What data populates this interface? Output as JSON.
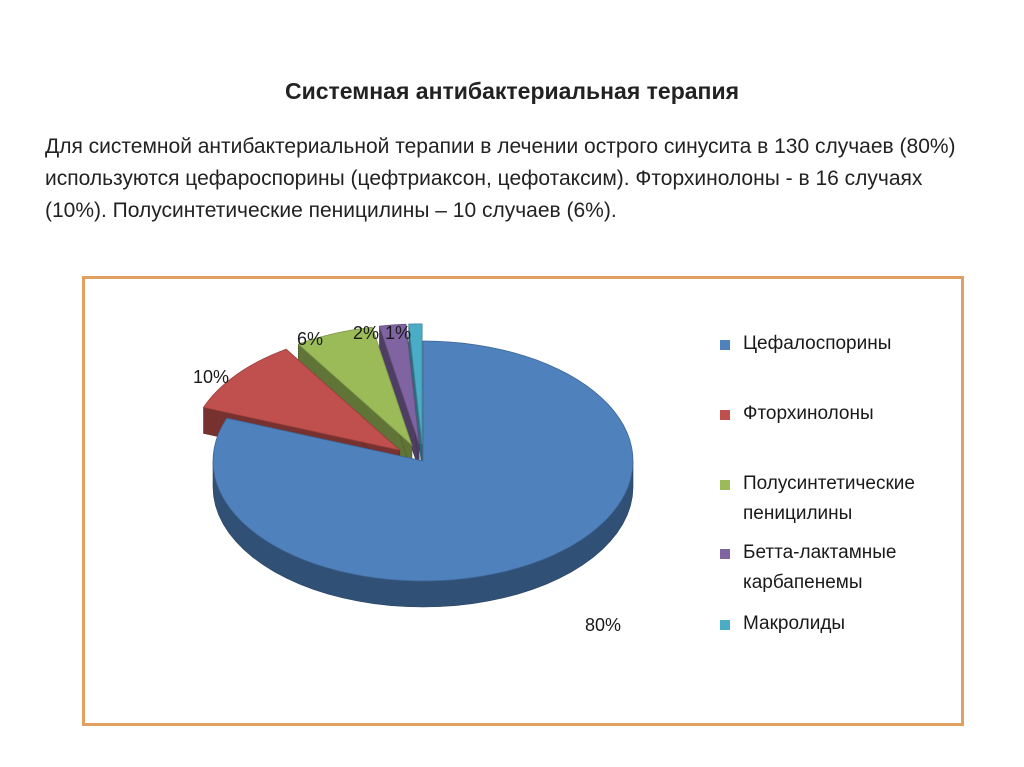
{
  "slide": {
    "title": "Системная антибактериальная терапия",
    "text": "Для системной антибактериальной терапии в лечении острого синусита в 130 случаев (80%) используются цефароспорины (цефтриаксон, цефотаксим). Фторхинолоны - в 16 случаях (10%). Полусинтетические пеницилины – 10 случаев (6%)."
  },
  "chart_data": {
    "type": "pie",
    "style": "3d-exploded",
    "legend_position": "right",
    "slices": [
      {
        "name": "Цефалоспорины",
        "value": 80,
        "label": "80%",
        "color": "#4f81bd"
      },
      {
        "name": "Фторхинолоны",
        "value": 10,
        "label": "10%",
        "color": "#c0504d"
      },
      {
        "name": "Полусинтетические пеницилины",
        "value": 6,
        "label": "6%",
        "color": "#9bbb59"
      },
      {
        "name": "Бетта-лактамные карбапенемы",
        "value": 2,
        "label": "2%",
        "color": "#8064a2"
      },
      {
        "name": "Макролиды",
        "value": 1,
        "label": "1%",
        "color": "#4bacc6"
      }
    ]
  }
}
